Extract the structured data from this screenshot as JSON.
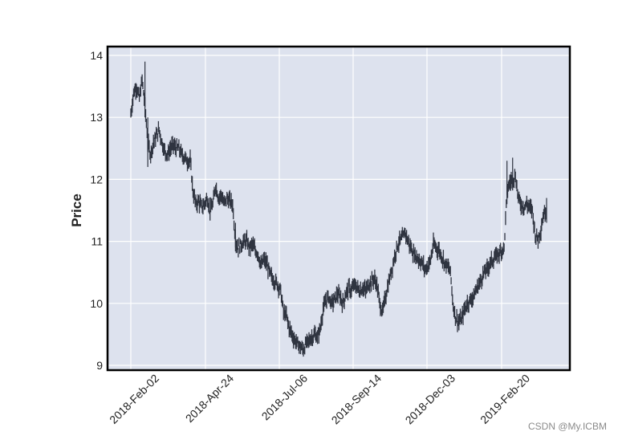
{
  "chart_data": {
    "type": "ohlc",
    "title": "",
    "xlabel": "",
    "ylabel": "Price",
    "ylim": [
      8.9,
      14.15
    ],
    "yticks": [
      9,
      10,
      11,
      12,
      13,
      14
    ],
    "xtick_labels": [
      "2018-Feb-02",
      "2018-Apr-24",
      "2018-Jul-06",
      "2018-Sep-14",
      "2018-Dec-03",
      "2019-Feb-20"
    ],
    "grid": true,
    "background": "#dde2ee",
    "grid_color": "#ffffff",
    "bar_color": "#2f3440",
    "frame_color": "#000000",
    "series": [
      {
        "name": "Price",
        "points": [
          [
            0,
            13.05
          ],
          [
            1,
            13.4
          ],
          [
            2,
            13.5
          ],
          [
            3,
            13.3
          ],
          [
            4,
            13.6
          ],
          [
            5,
            13.2
          ],
          [
            6,
            12.6
          ],
          [
            7,
            12.4
          ],
          [
            8,
            12.6
          ],
          [
            9,
            12.7
          ],
          [
            10,
            12.8
          ],
          [
            11,
            12.6
          ],
          [
            12,
            12.45
          ],
          [
            13,
            12.4
          ],
          [
            14,
            12.5
          ],
          [
            15,
            12.55
          ],
          [
            16,
            12.5
          ],
          [
            17,
            12.5
          ],
          [
            18,
            12.4
          ],
          [
            19,
            12.35
          ],
          [
            20,
            12.3
          ],
          [
            21,
            12.3
          ],
          [
            22,
            11.8
          ],
          [
            23,
            11.6
          ],
          [
            24,
            11.65
          ],
          [
            25,
            11.55
          ],
          [
            26,
            11.6
          ],
          [
            27,
            11.7
          ],
          [
            28,
            11.5
          ],
          [
            29,
            11.6
          ],
          [
            30,
            11.9
          ],
          [
            31,
            11.7
          ],
          [
            32,
            11.75
          ],
          [
            33,
            11.6
          ],
          [
            34,
            11.7
          ],
          [
            35,
            11.65
          ],
          [
            36,
            11.6
          ],
          [
            37,
            11.0
          ],
          [
            38,
            10.9
          ],
          [
            39,
            10.95
          ],
          [
            40,
            11.0
          ],
          [
            41,
            11.0
          ],
          [
            42,
            10.9
          ],
          [
            43,
            10.95
          ],
          [
            44,
            10.85
          ],
          [
            45,
            10.8
          ],
          [
            46,
            10.6
          ],
          [
            47,
            10.7
          ],
          [
            48,
            10.65
          ],
          [
            49,
            10.5
          ],
          [
            50,
            10.4
          ],
          [
            51,
            10.35
          ],
          [
            52,
            10.3
          ],
          [
            53,
            10.2
          ],
          [
            54,
            9.85
          ],
          [
            55,
            9.8
          ],
          [
            56,
            9.6
          ],
          [
            57,
            9.5
          ],
          [
            58,
            9.4
          ],
          [
            59,
            9.35
          ],
          [
            60,
            9.3
          ],
          [
            61,
            9.25
          ],
          [
            62,
            9.35
          ],
          [
            63,
            9.4
          ],
          [
            64,
            9.45
          ],
          [
            65,
            9.5
          ],
          [
            66,
            9.45
          ],
          [
            67,
            9.6
          ],
          [
            68,
            9.9
          ],
          [
            69,
            10.05
          ],
          [
            70,
            10.1
          ],
          [
            71,
            10.0
          ],
          [
            72,
            10.05
          ],
          [
            73,
            10.15
          ],
          [
            74,
            10.1
          ],
          [
            75,
            10.0
          ],
          [
            76,
            10.15
          ],
          [
            77,
            10.25
          ],
          [
            78,
            10.2
          ],
          [
            79,
            10.3
          ],
          [
            80,
            10.25
          ],
          [
            81,
            10.2
          ],
          [
            82,
            10.25
          ],
          [
            83,
            10.2
          ],
          [
            84,
            10.3
          ],
          [
            85,
            10.35
          ],
          [
            86,
            10.4
          ],
          [
            87,
            10.3
          ],
          [
            88,
            10.0
          ],
          [
            89,
            9.85
          ],
          [
            90,
            10.1
          ],
          [
            91,
            10.3
          ],
          [
            92,
            10.5
          ],
          [
            93,
            10.7
          ],
          [
            94,
            10.9
          ],
          [
            95,
            11.0
          ],
          [
            96,
            11.05
          ],
          [
            97,
            11.15
          ],
          [
            98,
            11.0
          ],
          [
            99,
            10.9
          ],
          [
            100,
            10.8
          ],
          [
            101,
            10.75
          ],
          [
            102,
            10.7
          ],
          [
            103,
            10.65
          ],
          [
            104,
            10.55
          ],
          [
            105,
            10.6
          ],
          [
            106,
            10.7
          ],
          [
            107,
            10.95
          ],
          [
            108,
            10.9
          ],
          [
            109,
            10.85
          ],
          [
            110,
            10.75
          ],
          [
            111,
            10.65
          ],
          [
            112,
            10.6
          ],
          [
            113,
            10.5
          ],
          [
            114,
            9.95
          ],
          [
            115,
            9.75
          ],
          [
            116,
            9.7
          ],
          [
            117,
            9.75
          ],
          [
            118,
            9.9
          ],
          [
            119,
            10.0
          ],
          [
            120,
            10.05
          ],
          [
            121,
            10.1
          ],
          [
            122,
            10.2
          ],
          [
            123,
            10.3
          ],
          [
            124,
            10.4
          ],
          [
            125,
            10.5
          ],
          [
            126,
            10.55
          ],
          [
            127,
            10.65
          ],
          [
            128,
            10.7
          ],
          [
            129,
            10.75
          ],
          [
            130,
            10.8
          ],
          [
            131,
            10.85
          ],
          [
            132,
            10.9
          ],
          [
            133,
            11.8
          ],
          [
            134,
            11.95
          ],
          [
            135,
            12.0
          ],
          [
            136,
            12.05
          ],
          [
            137,
            11.7
          ],
          [
            138,
            11.6
          ],
          [
            139,
            11.55
          ],
          [
            140,
            11.6
          ],
          [
            141,
            11.55
          ],
          [
            142,
            11.5
          ],
          [
            143,
            11.1
          ],
          [
            144,
            11.05
          ],
          [
            145,
            11.2
          ],
          [
            146,
            11.45
          ],
          [
            147,
            11.5
          ]
        ]
      }
    ]
  },
  "watermark": "CSDN @My.ICBM"
}
